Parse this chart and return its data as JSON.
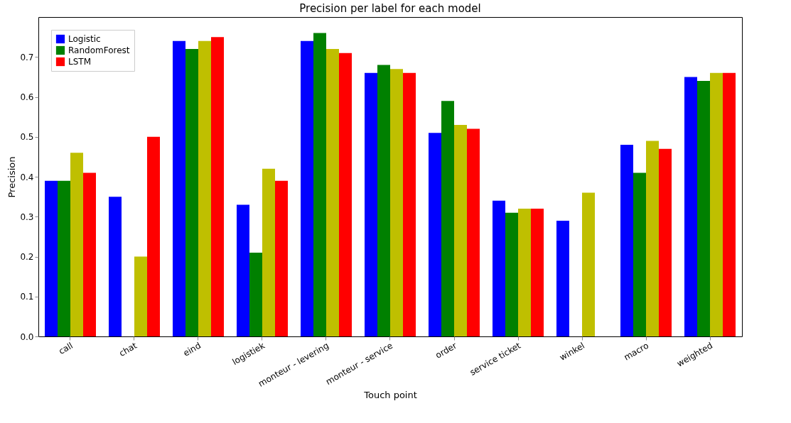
{
  "chart_data": {
    "type": "bar",
    "title": "Precision per label for each model",
    "xlabel": "Touch point",
    "ylabel": "Precision",
    "categories": [
      "call",
      "chat",
      "eind",
      "logistiek",
      "monteur - levering",
      "monteur - service",
      "order",
      "service ticket",
      "winkel",
      "macro",
      "weighted"
    ],
    "series": [
      {
        "name": "Logistic",
        "color": "#0000ff",
        "values": [
          0.39,
          0.35,
          0.74,
          0.33,
          0.74,
          0.66,
          0.51,
          0.34,
          0.29,
          0.48,
          0.65
        ]
      },
      {
        "name": "RandomForest",
        "color": "#008000",
        "values": [
          0.39,
          0,
          0.72,
          0.21,
          0.76,
          0.68,
          0.59,
          0.31,
          0,
          0.41,
          0.64
        ]
      },
      {
        "color": "#bfbf00",
        "values": [
          0.46,
          0.2,
          0.74,
          0.42,
          0.72,
          0.67,
          0.53,
          0.32,
          0.36,
          0.49,
          0.66
        ]
      },
      {
        "name": "LSTM",
        "color": "#ff0000",
        "values": [
          0.41,
          0.5,
          0.75,
          0.39,
          0.71,
          0.66,
          0.52,
          0.32,
          0,
          0.47,
          0.66
        ]
      }
    ],
    "ylim": [
      0,
      0.8
    ],
    "yticks": [
      {
        "value": 0,
        "label": "0.0"
      },
      {
        "value": 0.1,
        "label": "0.1"
      },
      {
        "value": 0.2,
        "label": "0.2"
      },
      {
        "value": 0.3,
        "label": "0.3"
      },
      {
        "value": 0.4,
        "label": "0.4"
      },
      {
        "value": 0.5,
        "label": "0.5"
      },
      {
        "value": 0.6,
        "label": "0.6"
      },
      {
        "value": 0.7,
        "label": "0.7"
      }
    ],
    "grid": false,
    "legend": "top left"
  }
}
